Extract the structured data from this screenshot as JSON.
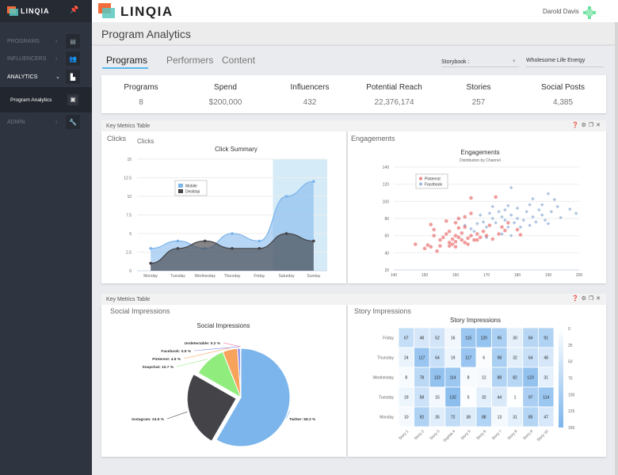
{
  "app": {
    "brand": "LINQIA",
    "user": "Darold Davis",
    "page_title": "Program Analytics"
  },
  "sidebar": {
    "items": [
      {
        "label": "PROGRAMS",
        "icon": "book-icon"
      },
      {
        "label": "INFLUENCERS",
        "icon": "users-icon"
      },
      {
        "label": "ANALYTICS",
        "icon": "chart-icon"
      },
      {
        "label": "ADMIN",
        "icon": "wrench-icon"
      }
    ],
    "sub_item": "Program Analytics"
  },
  "tabs": [
    "Programs",
    "Performers",
    "Content"
  ],
  "filters": {
    "storybook_label": "Storybook :",
    "storybook_value": "Wholesome Life Energy"
  },
  "stats": [
    {
      "label": "Programs",
      "value": "8"
    },
    {
      "label": "Spend",
      "value": "$200,000"
    },
    {
      "label": "Influencers",
      "value": "432"
    },
    {
      "label": "Potential Reach",
      "value": "22,376,174"
    },
    {
      "label": "Stories",
      "value": "257"
    },
    {
      "label": "Social Posts",
      "value": "4,385"
    }
  ],
  "panels": [
    {
      "header": "Key Metrics Table",
      "left_title": "Clicks",
      "right_title": "Engagements"
    },
    {
      "header": "Key Metrics Table",
      "left_title": "Social Impressions",
      "right_title": "Story Impressions"
    }
  ],
  "colors": {
    "accent": "#5bb7f0",
    "mobile": "#7cb5ec",
    "desktop": "#434348",
    "pinterest": "#e34c4c",
    "facebook": "#779ccb"
  },
  "chart_data": [
    {
      "type": "area",
      "inner_title": "Clicks",
      "title": "Click Summary",
      "categories": [
        "Monday",
        "Tuesday",
        "Wednesday",
        "Thursday",
        "Friday",
        "Saturday",
        "Sunday"
      ],
      "ylim": [
        0,
        15
      ],
      "yticks": [
        "0",
        "2.5",
        "5",
        "7.5",
        "10",
        "12.5",
        "15"
      ],
      "highlight": [
        "Saturday",
        "Sunday"
      ],
      "legend": "top-left",
      "series": [
        {
          "name": "Mobile",
          "values": [
            3,
            4,
            3,
            5,
            4,
            10,
            12
          ]
        },
        {
          "name": "Desktop",
          "values": [
            1,
            3,
            4,
            3,
            3,
            5,
            4
          ]
        }
      ]
    },
    {
      "type": "scatter",
      "title": "Engagements",
      "subtitle": "Distribution by Channel",
      "xlim": [
        140,
        200
      ],
      "ylim": [
        20,
        140
      ],
      "xticks": [
        "140",
        "150",
        "160",
        "170",
        "180",
        "190",
        "200"
      ],
      "yticks": [
        "20",
        "40",
        "60",
        "80",
        "100",
        "120",
        "140"
      ],
      "legend": "top-left",
      "series": [
        {
          "name": "Pinterest",
          "points": [
            [
              147,
              50
            ],
            [
              150,
              45
            ],
            [
              151,
              49
            ],
            [
              152,
              47
            ],
            [
              152,
              73
            ],
            [
              153,
              60
            ],
            [
              153,
              67
            ],
            [
              154,
              42
            ],
            [
              155,
              48
            ],
            [
              155,
              55
            ],
            [
              156,
              58
            ],
            [
              157,
              62
            ],
            [
              157,
              77
            ],
            [
              158,
              52
            ],
            [
              158,
              65
            ],
            [
              159,
              50
            ],
            [
              159,
              56
            ],
            [
              160,
              47
            ],
            [
              160,
              53
            ],
            [
              160,
              60
            ],
            [
              160,
              75
            ],
            [
              161,
              58
            ],
            [
              161,
              69
            ],
            [
              162,
              55
            ],
            [
              162,
              63
            ],
            [
              163,
              52
            ],
            [
              163,
              82
            ],
            [
              164,
              57
            ],
            [
              165,
              60
            ],
            [
              165,
              86
            ],
            [
              165,
              104
            ],
            [
              166,
              55
            ],
            [
              167,
              62
            ],
            [
              168,
              58
            ],
            [
              169,
              65
            ],
            [
              170,
              60
            ],
            [
              171,
              72
            ],
            [
              172,
              56
            ],
            [
              173,
              105
            ],
            [
              174,
              62
            ],
            [
              175,
              70
            ],
            [
              176,
              66
            ],
            [
              177,
              75
            ],
            [
              180,
              67
            ],
            [
              181,
              61
            ],
            [
              161,
              80
            ],
            [
              163,
              70
            ],
            [
              158,
              48
            ],
            [
              164,
              50
            ],
            [
              167,
              55
            ]
          ]
        },
        {
          "name": "Facebook",
          "points": [
            [
              163,
              72
            ],
            [
              165,
              68
            ],
            [
              167,
              74
            ],
            [
              168,
              84
            ],
            [
              169,
              76
            ],
            [
              170,
              70
            ],
            [
              171,
              86
            ],
            [
              172,
              80
            ],
            [
              172,
              94
            ],
            [
              173,
              75
            ],
            [
              174,
              88
            ],
            [
              175,
              82
            ],
            [
              175,
              62
            ],
            [
              176,
              78
            ],
            [
              176,
              90
            ],
            [
              177,
              70
            ],
            [
              177,
              95
            ],
            [
              178,
              116
            ],
            [
              178,
              84
            ],
            [
              178,
              60
            ],
            [
              179,
              75
            ],
            [
              180,
              92
            ],
            [
              180,
              80
            ],
            [
              181,
              70
            ],
            [
              182,
              78
            ],
            [
              183,
              88
            ],
            [
              184,
              72
            ],
            [
              184,
              96
            ],
            [
              185,
              82
            ],
            [
              185,
              103
            ],
            [
              186,
              76
            ],
            [
              187,
              90
            ],
            [
              188,
              84
            ],
            [
              188,
              96
            ],
            [
              189,
              78
            ],
            [
              190,
              109
            ],
            [
              190,
              74
            ],
            [
              191,
              88
            ],
            [
              192,
              102
            ],
            [
              193,
              94
            ],
            [
              194,
              81
            ],
            [
              197,
              91
            ],
            [
              199,
              86
            ],
            [
              166,
              65
            ],
            [
              170,
              58
            ]
          ]
        }
      ]
    },
    {
      "type": "pie",
      "title": "Social Impressions",
      "slices": [
        {
          "name": "Twitter",
          "value": 58.3,
          "label": "Twitter: 58.3 %",
          "color": "#7cb5ec"
        },
        {
          "name": "Instagram",
          "value": 24.9,
          "label": "Instagram: 24.9 %",
          "color": "#434348",
          "exploded": true
        },
        {
          "name": "Snapchat",
          "value": 10.7,
          "label": "Snapchat: 10.7 %",
          "color": "#90ed7d"
        },
        {
          "name": "Pinterest",
          "value": 4.9,
          "label": "Pinterest: 4.9 %",
          "color": "#f7a35c"
        },
        {
          "name": "Facebook",
          "value": 0.9,
          "label": "Facebook: 0.9 %",
          "color": "#8085e9"
        },
        {
          "name": "Undetectable",
          "value": 0.2,
          "label": "Undetectable: 0.2 %",
          "color": "#f15c80"
        }
      ]
    },
    {
      "type": "heatmap",
      "title": "Story Impressions",
      "columns": [
        "Story 1",
        "Story 2",
        "Story 3",
        "Sophia 4",
        "Story 5",
        "Story 6",
        "Story 7",
        "Story 8",
        "Story 9",
        "Story 10"
      ],
      "rows": [
        "Friday",
        "Thursday",
        "Wednesday",
        "Tuesday",
        "Monday"
      ],
      "values": [
        [
          67,
          48,
          52,
          16,
          115,
          120,
          96,
          30,
          84,
          91
        ],
        [
          24,
          117,
          64,
          19,
          117,
          6,
          98,
          32,
          64,
          48
        ],
        [
          8,
          78,
          123,
          114,
          8,
          12,
          88,
          82,
          123,
          31
        ],
        [
          19,
          58,
          15,
          132,
          5,
          32,
          44,
          1,
          97,
          114
        ],
        [
          10,
          92,
          35,
          72,
          38,
          88,
          13,
          31,
          85,
          47
        ]
      ],
      "color_range": [
        0,
        150
      ],
      "color_ticks": [
        "0",
        "25",
        "50",
        "75",
        "100",
        "125",
        "150"
      ],
      "min_color": "#ffffff",
      "max_color": "#7cb5ec"
    }
  ]
}
